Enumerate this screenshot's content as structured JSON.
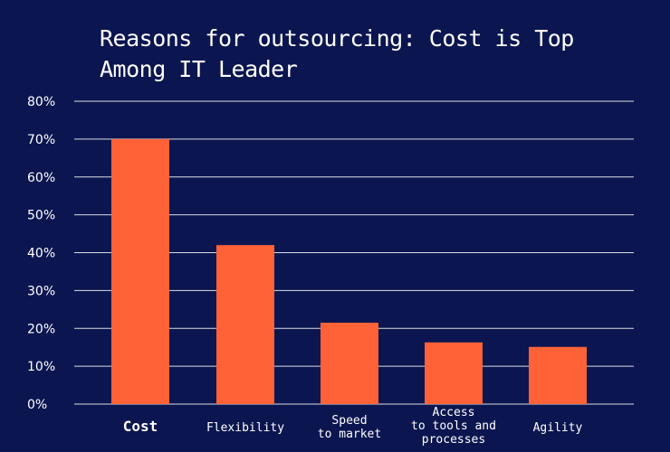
{
  "chart_data": {
    "type": "bar",
    "title": "Reasons for outsourcing: Cost is Top Among IT Leader",
    "categories": [
      "Cost",
      "Flexibility",
      "Speed to market",
      "Access to tools and processes",
      "Agility"
    ],
    "category_lines": [
      [
        "Cost"
      ],
      [
        "Flexibility"
      ],
      [
        "Speed",
        "to market"
      ],
      [
        "Access",
        "to tools and",
        "processes"
      ],
      [
        "Agility"
      ]
    ],
    "values": [
      70,
      42,
      21.5,
      16.3,
      15.1
    ],
    "yticks": [
      "0%",
      "10%",
      "20%",
      "30%",
      "40%",
      "50%",
      "60%",
      "70%",
      "80%"
    ],
    "ylim": [
      0,
      80
    ],
    "xlabel": "",
    "ylabel": "",
    "grid": true,
    "bar_color": "#ff6236",
    "background_color": "#0b1650"
  }
}
